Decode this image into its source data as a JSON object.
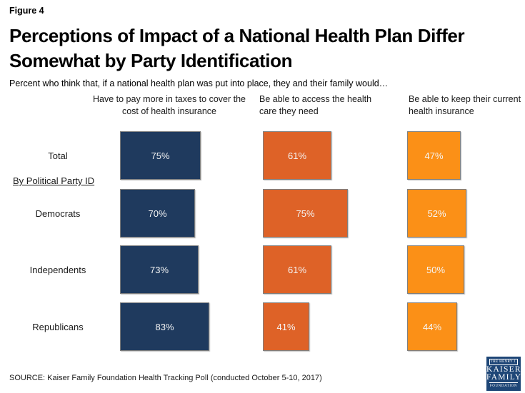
{
  "figure_label": "Figure 4",
  "title": "Perceptions of Impact of a National Health Plan Differ Somewhat by Party Identification",
  "subtitle": "Percent who think that, if a national health plan was put into place, they and their family would…",
  "section_label": "By Political Party ID",
  "source": "SOURCE: Kaiser Family Foundation Health Tracking Poll (conducted October 5-10, 2017)",
  "logo": {
    "line1": "THE HENRY J.",
    "line2": "KAISER",
    "line3": "FAMILY",
    "line4": "FOUNDATION"
  },
  "colors": {
    "navy": "#1f3a5e",
    "dark_orange": "#de6227",
    "light_orange": "#fb9017",
    "bar_border": "#7f7f7f",
    "logo_navy": "#1e4677"
  },
  "chart_data": {
    "type": "bar",
    "orientation": "horizontal",
    "value_format": "percent",
    "xlim": [
      0,
      100
    ],
    "grid": false,
    "legend_position": "column-headers-top",
    "categories": [
      "Total",
      "Democrats",
      "Independents",
      "Republicans"
    ],
    "series": [
      {
        "id": "taxes",
        "name": "Have to pay more in taxes to cover the cost of health insurance",
        "color": "#1f3a5e",
        "values": [
          75,
          70,
          73,
          83
        ]
      },
      {
        "id": "access",
        "name": "Be able to access the health care they need",
        "color": "#de6227",
        "values": [
          61,
          75,
          61,
          41
        ]
      },
      {
        "id": "keep",
        "name": "Be able to keep their current health insurance",
        "color": "#fb9017",
        "values": [
          47,
          52,
          50,
          44
        ]
      }
    ]
  }
}
